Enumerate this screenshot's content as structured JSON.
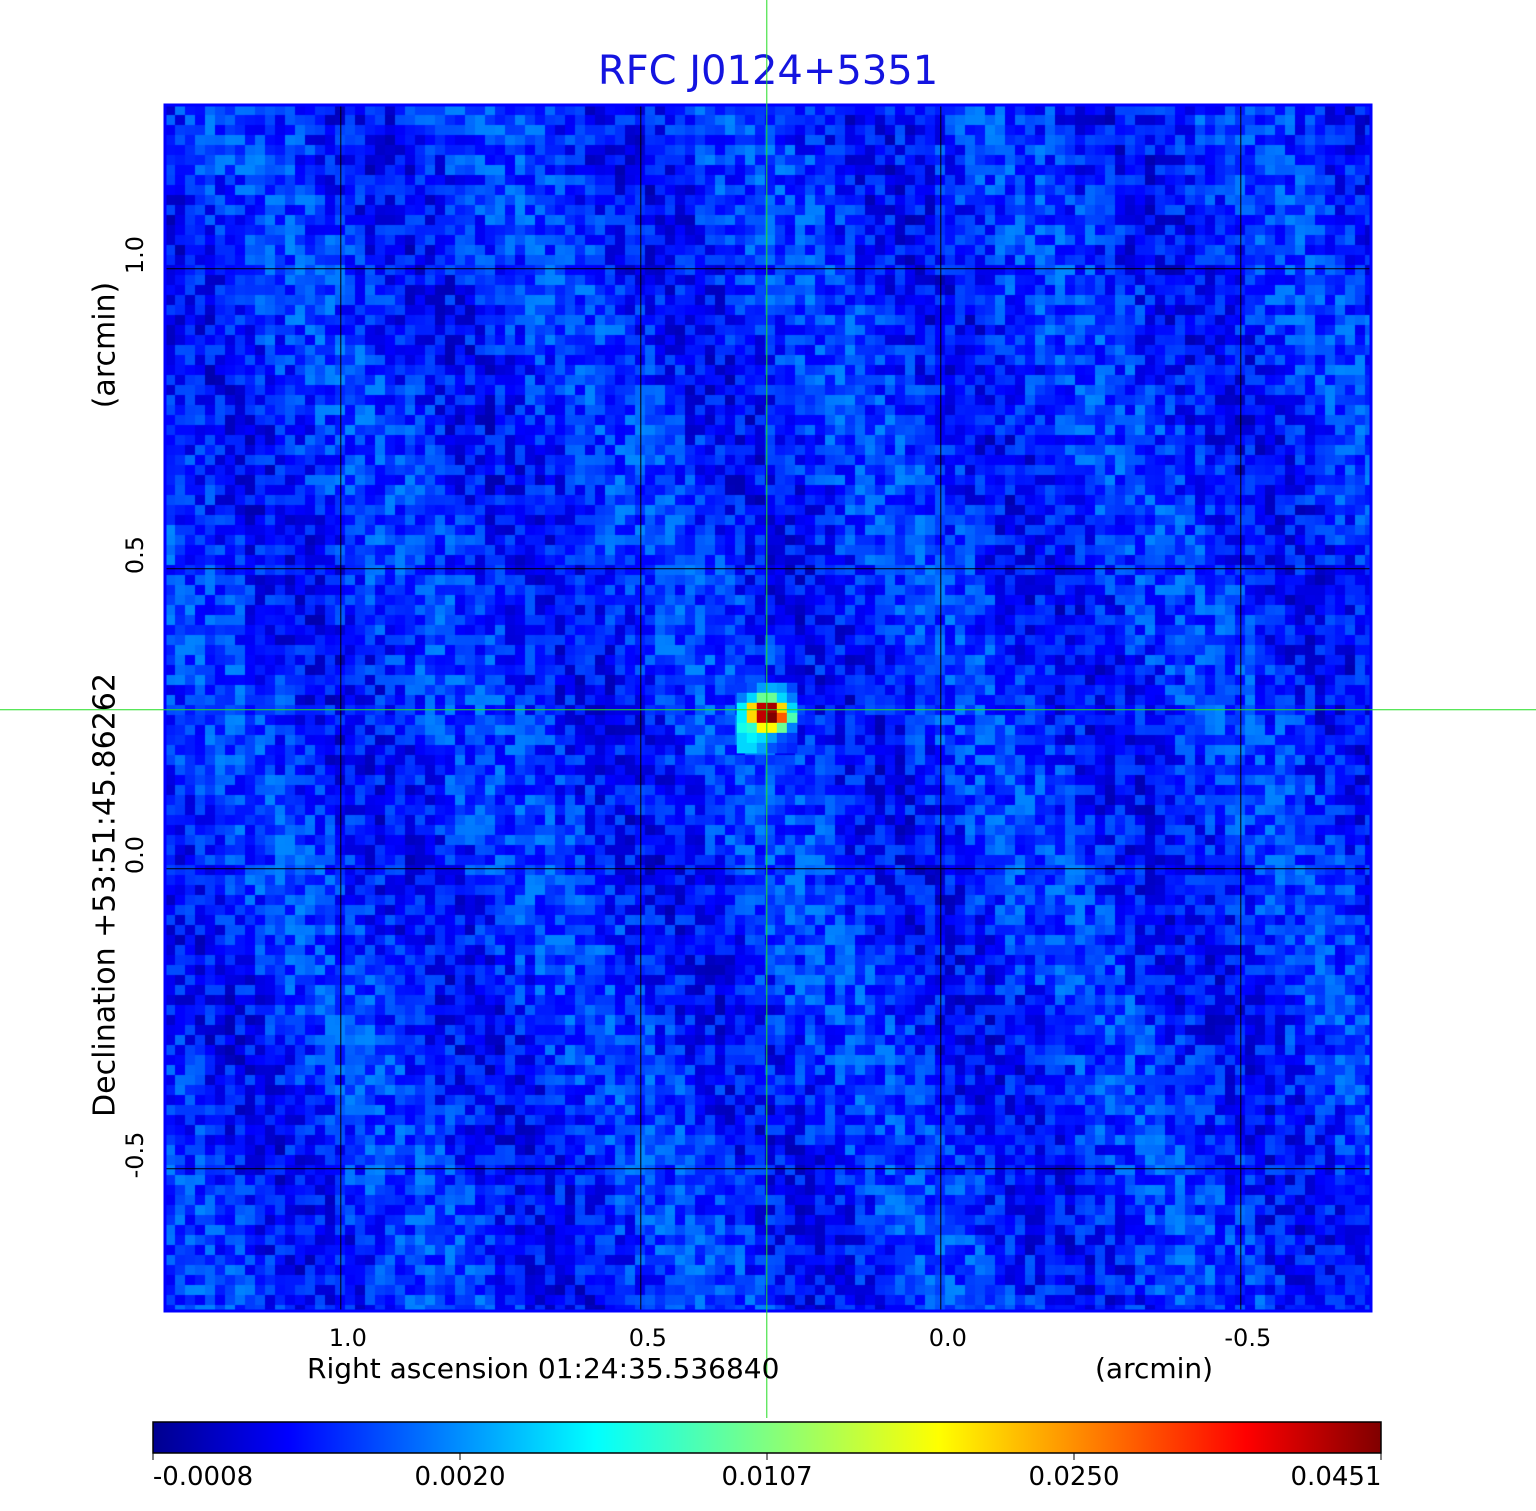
{
  "chart_data": {
    "type": "heatmap",
    "title": "RFC J0124+5351",
    "xlabel": "Right ascension  01:24:35.536840",
    "xunit": "(arcmin)",
    "ylabel": "Declination  +53:51:45.86262",
    "yunit": "(arcmin)",
    "xlim": [
      1.293,
      -0.717
    ],
    "ylim": [
      -0.737,
      1.273
    ],
    "x_ticks": [
      {
        "value": 1.0,
        "label": "1.0"
      },
      {
        "value": 0.5,
        "label": "0.5"
      },
      {
        "value": 0.0,
        "label": "0.0"
      },
      {
        "value": -0.5,
        "label": "-0.5"
      }
    ],
    "y_ticks": [
      {
        "value": 1.0,
        "label": "1.0"
      },
      {
        "value": 0.5,
        "label": "0.5"
      },
      {
        "value": 0.0,
        "label": "0.0"
      },
      {
        "value": -0.5,
        "label": "-0.5"
      }
    ],
    "grid": true,
    "crosshair": {
      "x": 0.29,
      "y": 0.265,
      "color": "#22dd22"
    },
    "colormap": "jet",
    "colorbar": {
      "placement": "bottom",
      "ticks": [
        "-0.0008",
        "0.0020",
        "0.0107",
        "0.0250",
        "0.0451"
      ],
      "tick_values": [
        -0.0008,
        0.002,
        0.0107,
        0.025,
        0.0451
      ]
    },
    "background_level": 0.001,
    "source": {
      "center": [
        0.29,
        0.265
      ],
      "pixel_arcmin": 0.0167,
      "values": [
        [
          0.0012,
          0.0015,
          0.003,
          0.0035,
          0.003,
          0.0014
        ],
        [
          0.002,
          0.005,
          0.01,
          0.01,
          0.005,
          0.002
        ],
        [
          0.006,
          0.02,
          0.04,
          0.042,
          0.02,
          0.005
        ],
        [
          0.006,
          0.02,
          0.04,
          0.0451,
          0.028,
          0.009
        ],
        [
          0.007,
          0.008,
          0.018,
          0.018,
          0.01,
          0.002
        ],
        [
          0.005,
          0.006,
          0.005,
          0.003,
          0.0015,
          0.0012
        ],
        [
          0.005,
          0.005,
          0.003,
          0.0015,
          0.0012,
          0.001
        ]
      ]
    }
  },
  "colors": {
    "title": "#1414e0",
    "frame": "#0000ff",
    "grid": "#000000",
    "crosshair": "#22dd22"
  }
}
